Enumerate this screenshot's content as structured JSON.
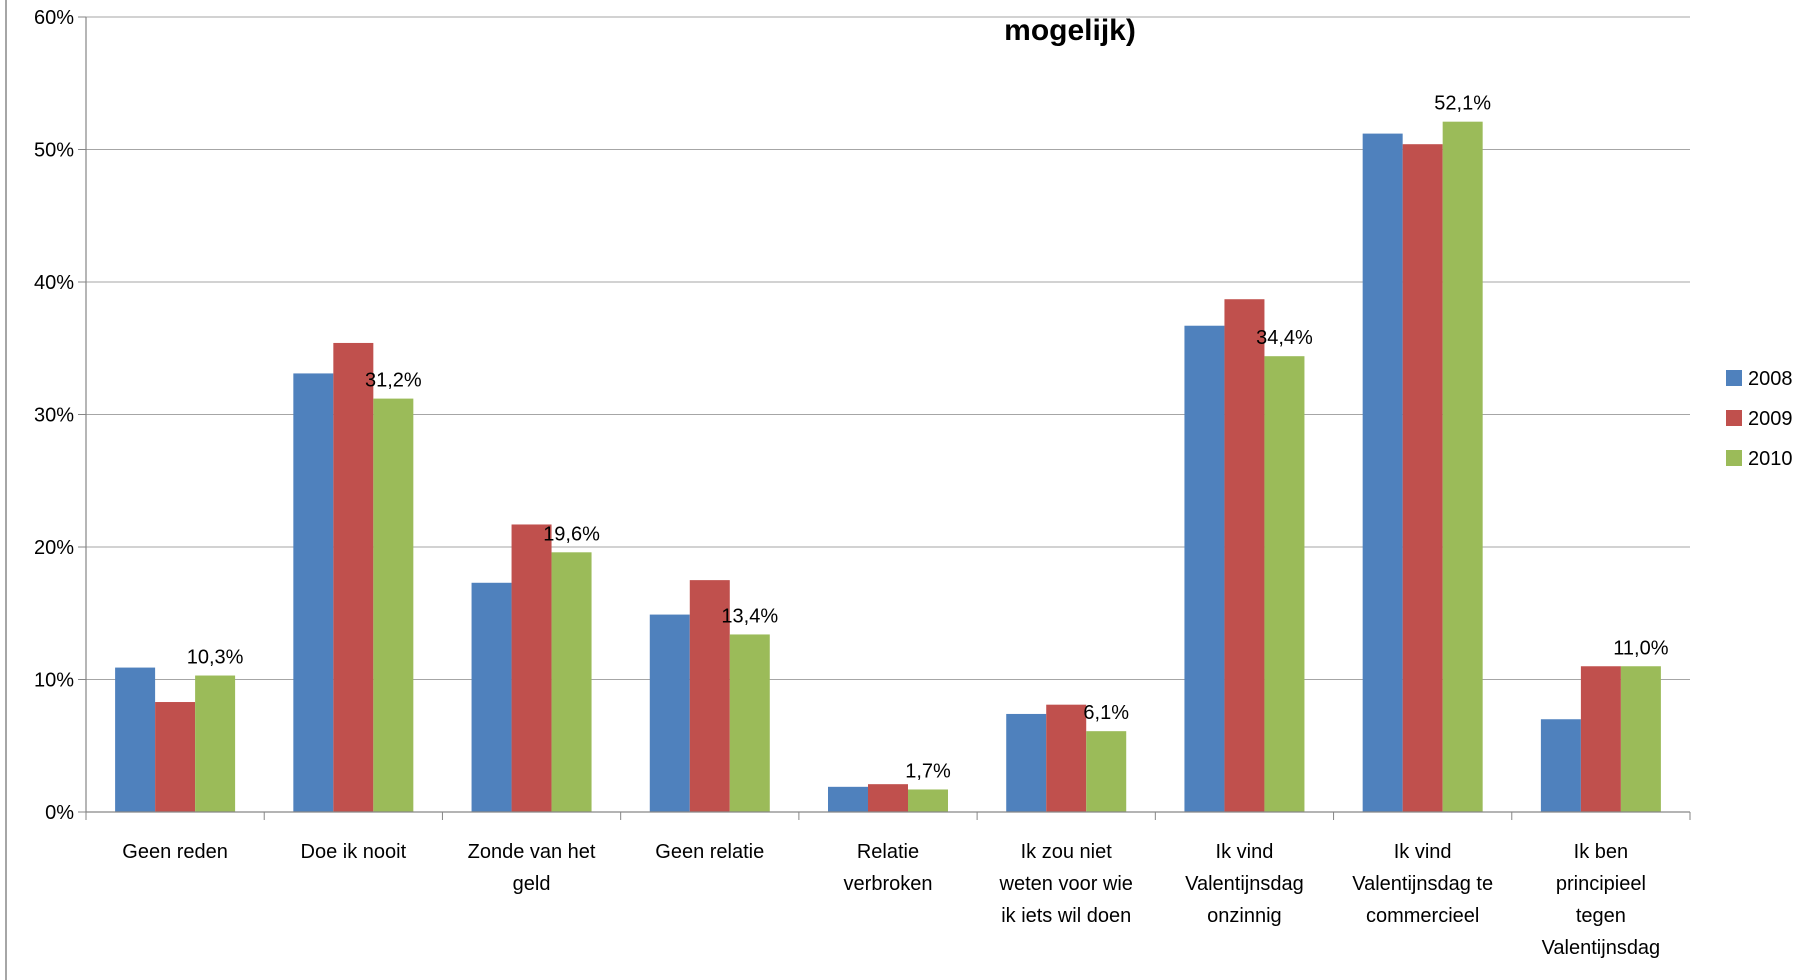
{
  "chart_data": {
    "type": "bar",
    "title": "mogelijk)",
    "categories": [
      [
        "Geen reden"
      ],
      [
        "Doe ik nooit"
      ],
      [
        "Zonde van het",
        "geld"
      ],
      [
        "Geen relatie"
      ],
      [
        "Relatie",
        "verbroken"
      ],
      [
        "Ik zou niet",
        "weten voor wie",
        "ik iets wil doen"
      ],
      [
        "Ik vind",
        "Valentijnsdag",
        "onzinnig"
      ],
      [
        "Ik vind",
        "Valentijnsdag te",
        "commercieel"
      ],
      [
        "Ik ben",
        "principieel",
        "tegen",
        "Valentijnsdag"
      ]
    ],
    "series": [
      {
        "name": "2008",
        "color": "#4f81bd",
        "values": [
          10.9,
          33.1,
          17.3,
          14.9,
          1.9,
          7.4,
          36.7,
          51.2,
          7.0
        ]
      },
      {
        "name": "2009",
        "color": "#c0504d",
        "values": [
          8.3,
          35.4,
          21.7,
          17.5,
          2.1,
          8.1,
          38.7,
          50.4,
          11.0
        ]
      },
      {
        "name": "2010",
        "color": "#9bbb59",
        "values": [
          10.3,
          31.2,
          19.6,
          13.4,
          1.7,
          6.1,
          34.4,
          52.1,
          11.0
        ]
      }
    ],
    "data_labels": [
      "10,3%",
      "31,2%",
      "19,6%",
      "13,4%",
      "1,7%",
      "6,1%",
      "34,4%",
      "52,1%",
      "11,0%"
    ],
    "ylim": [
      0,
      60
    ],
    "yticks": [
      "0%",
      "10%",
      "20%",
      "30%",
      "40%",
      "50%",
      "60%"
    ],
    "grid": true,
    "legend": "right"
  }
}
